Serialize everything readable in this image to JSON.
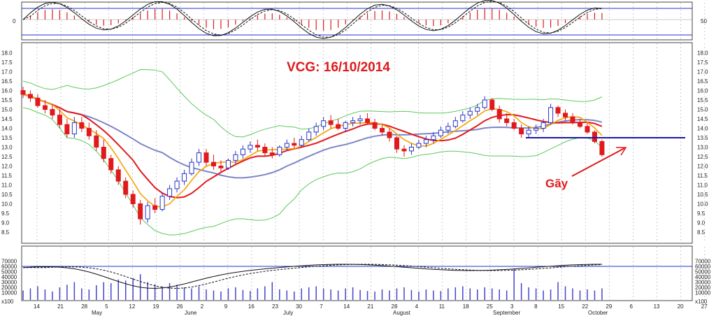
{
  "chart_data": {
    "type": "candlestick",
    "title": "VCG: 16/10/2014",
    "annotation": "Gãy",
    "colors": {
      "up_candle": "#2b35c8",
      "down_candle": "#e0191c",
      "ma_fast": "#f5a300",
      "ma_mid": "#e0191c",
      "ma_slow": "#7d86c8",
      "bollinger": "#5cc95c",
      "support_line": "#1a1aa8",
      "volume_bar": "#4444cc",
      "grid": "#b8b8b8"
    },
    "price_panel": {
      "ylim": [
        8.0,
        18.0
      ],
      "yticks": [
        "18.0",
        "17.5",
        "17.0",
        "16.5",
        "16.0",
        "15.5",
        "15.0",
        "14.5",
        "14.0",
        "13.5",
        "13.0",
        "12.5",
        "12.0",
        "11.5",
        "11.0",
        "10.5",
        "10.0",
        "9.5",
        "9.0",
        "8.5"
      ],
      "support_level": 13.5,
      "support_start_date": "Sep 15",
      "candles": [
        {
          "o": 16.0,
          "h": 16.2,
          "l": 15.6,
          "c": 15.8
        },
        {
          "o": 15.8,
          "h": 16.0,
          "l": 15.4,
          "c": 15.6
        },
        {
          "o": 15.6,
          "h": 15.8,
          "l": 15.1,
          "c": 15.2
        },
        {
          "o": 15.2,
          "h": 15.5,
          "l": 14.8,
          "c": 15.0
        },
        {
          "o": 15.0,
          "h": 15.3,
          "l": 14.5,
          "c": 14.7
        },
        {
          "o": 14.7,
          "h": 15.0,
          "l": 14.0,
          "c": 14.2
        },
        {
          "o": 14.2,
          "h": 14.5,
          "l": 13.5,
          "c": 13.7
        },
        {
          "o": 13.7,
          "h": 14.6,
          "l": 13.5,
          "c": 14.3
        },
        {
          "o": 14.3,
          "h": 14.6,
          "l": 13.8,
          "c": 14.0
        },
        {
          "o": 14.0,
          "h": 14.3,
          "l": 13.4,
          "c": 13.6
        },
        {
          "o": 13.6,
          "h": 13.9,
          "l": 12.8,
          "c": 13.0
        },
        {
          "o": 13.0,
          "h": 13.4,
          "l": 12.2,
          "c": 12.4
        },
        {
          "o": 12.4,
          "h": 12.6,
          "l": 11.6,
          "c": 11.8
        },
        {
          "o": 11.8,
          "h": 12.0,
          "l": 11.0,
          "c": 11.2
        },
        {
          "o": 11.2,
          "h": 11.4,
          "l": 10.3,
          "c": 10.5
        },
        {
          "o": 10.5,
          "h": 10.7,
          "l": 9.8,
          "c": 10.0
        },
        {
          "o": 10.0,
          "h": 10.2,
          "l": 8.9,
          "c": 9.2
        },
        {
          "o": 9.2,
          "h": 10.1,
          "l": 9.0,
          "c": 9.9
        },
        {
          "o": 9.9,
          "h": 10.3,
          "l": 9.5,
          "c": 9.7
        },
        {
          "o": 9.7,
          "h": 10.6,
          "l": 9.6,
          "c": 10.4
        },
        {
          "o": 10.4,
          "h": 11.0,
          "l": 10.2,
          "c": 10.8
        },
        {
          "o": 10.8,
          "h": 11.4,
          "l": 10.6,
          "c": 11.2
        },
        {
          "o": 11.2,
          "h": 11.8,
          "l": 11.0,
          "c": 11.6
        },
        {
          "o": 11.6,
          "h": 12.4,
          "l": 11.5,
          "c": 12.2
        },
        {
          "o": 12.2,
          "h": 12.9,
          "l": 12.0,
          "c": 12.7
        },
        {
          "o": 12.7,
          "h": 12.9,
          "l": 12.0,
          "c": 12.2
        },
        {
          "o": 12.2,
          "h": 12.6,
          "l": 11.8,
          "c": 12.0
        },
        {
          "o": 12.0,
          "h": 12.3,
          "l": 11.7,
          "c": 11.9
        },
        {
          "o": 11.9,
          "h": 12.4,
          "l": 11.8,
          "c": 12.3
        },
        {
          "o": 12.3,
          "h": 12.8,
          "l": 12.1,
          "c": 12.6
        },
        {
          "o": 12.6,
          "h": 13.1,
          "l": 12.4,
          "c": 12.9
        },
        {
          "o": 12.9,
          "h": 13.3,
          "l": 12.7,
          "c": 13.1
        },
        {
          "o": 13.1,
          "h": 13.4,
          "l": 12.8,
          "c": 13.0
        },
        {
          "o": 13.0,
          "h": 13.2,
          "l": 12.5,
          "c": 12.7
        },
        {
          "o": 12.7,
          "h": 13.0,
          "l": 12.4,
          "c": 12.6
        },
        {
          "o": 12.6,
          "h": 13.1,
          "l": 12.5,
          "c": 13.0
        },
        {
          "o": 13.0,
          "h": 13.4,
          "l": 12.8,
          "c": 13.2
        },
        {
          "o": 13.2,
          "h": 13.5,
          "l": 12.9,
          "c": 13.1
        },
        {
          "o": 13.1,
          "h": 13.6,
          "l": 13.0,
          "c": 13.4
        },
        {
          "o": 13.4,
          "h": 14.0,
          "l": 13.3,
          "c": 13.8
        },
        {
          "o": 13.8,
          "h": 14.3,
          "l": 13.6,
          "c": 14.1
        },
        {
          "o": 14.1,
          "h": 14.6,
          "l": 13.9,
          "c": 14.4
        },
        {
          "o": 14.4,
          "h": 14.7,
          "l": 14.0,
          "c": 14.2
        },
        {
          "o": 14.2,
          "h": 14.5,
          "l": 13.9,
          "c": 14.0
        },
        {
          "o": 14.0,
          "h": 14.4,
          "l": 13.8,
          "c": 14.3
        },
        {
          "o": 14.3,
          "h": 14.6,
          "l": 14.1,
          "c": 14.4
        },
        {
          "o": 14.4,
          "h": 14.7,
          "l": 14.2,
          "c": 14.5
        },
        {
          "o": 14.5,
          "h": 14.8,
          "l": 14.2,
          "c": 14.3
        },
        {
          "o": 14.3,
          "h": 14.5,
          "l": 13.9,
          "c": 14.0
        },
        {
          "o": 14.0,
          "h": 14.2,
          "l": 13.6,
          "c": 13.8
        },
        {
          "o": 13.8,
          "h": 14.0,
          "l": 13.3,
          "c": 13.5
        },
        {
          "o": 13.5,
          "h": 13.6,
          "l": 12.7,
          "c": 12.9
        },
        {
          "o": 12.9,
          "h": 13.1,
          "l": 12.5,
          "c": 12.8
        },
        {
          "o": 12.8,
          "h": 13.2,
          "l": 12.6,
          "c": 13.0
        },
        {
          "o": 13.0,
          "h": 13.4,
          "l": 12.9,
          "c": 13.2
        },
        {
          "o": 13.2,
          "h": 13.6,
          "l": 13.0,
          "c": 13.4
        },
        {
          "o": 13.4,
          "h": 13.8,
          "l": 13.2,
          "c": 13.6
        },
        {
          "o": 13.6,
          "h": 14.1,
          "l": 13.5,
          "c": 13.9
        },
        {
          "o": 13.9,
          "h": 14.3,
          "l": 13.7,
          "c": 14.1
        },
        {
          "o": 14.1,
          "h": 14.6,
          "l": 14.0,
          "c": 14.4
        },
        {
          "o": 14.4,
          "h": 14.9,
          "l": 14.3,
          "c": 14.7
        },
        {
          "o": 14.7,
          "h": 15.1,
          "l": 14.5,
          "c": 14.9
        },
        {
          "o": 14.9,
          "h": 15.3,
          "l": 14.7,
          "c": 15.1
        },
        {
          "o": 15.1,
          "h": 15.7,
          "l": 15.0,
          "c": 15.5
        },
        {
          "o": 15.5,
          "h": 15.6,
          "l": 14.9,
          "c": 15.0
        },
        {
          "o": 15.0,
          "h": 15.2,
          "l": 14.3,
          "c": 14.5
        },
        {
          "o": 14.5,
          "h": 14.8,
          "l": 14.1,
          "c": 14.3
        },
        {
          "o": 14.3,
          "h": 14.5,
          "l": 13.9,
          "c": 14.0
        },
        {
          "o": 14.0,
          "h": 14.2,
          "l": 13.5,
          "c": 13.7
        },
        {
          "o": 13.7,
          "h": 14.1,
          "l": 13.5,
          "c": 13.9
        },
        {
          "o": 13.9,
          "h": 14.2,
          "l": 13.7,
          "c": 14.0
        },
        {
          "o": 14.0,
          "h": 14.5,
          "l": 13.8,
          "c": 14.3
        },
        {
          "o": 14.3,
          "h": 15.3,
          "l": 14.2,
          "c": 15.1
        },
        {
          "o": 15.1,
          "h": 15.2,
          "l": 14.6,
          "c": 14.8
        },
        {
          "o": 14.8,
          "h": 15.0,
          "l": 14.4,
          "c": 14.6
        },
        {
          "o": 14.6,
          "h": 14.8,
          "l": 14.2,
          "c": 14.3
        },
        {
          "o": 14.3,
          "h": 14.5,
          "l": 14.0,
          "c": 14.1
        },
        {
          "o": 14.1,
          "h": 14.3,
          "l": 13.7,
          "c": 13.8
        },
        {
          "o": 13.8,
          "h": 13.9,
          "l": 13.2,
          "c": 13.3
        },
        {
          "o": 13.3,
          "h": 13.4,
          "l": 12.5,
          "c": 12.6
        }
      ]
    },
    "oscillator_panel": {
      "yticks_left": [
        "0"
      ],
      "yticks_right": [
        "50"
      ]
    },
    "volume_panel": {
      "yticks": [
        "70000",
        "60000",
        "50000",
        "40000",
        "30000",
        "20000",
        "10000"
      ],
      "level_line": 60000,
      "unit_label": "x100",
      "volume": [
        14,
        18,
        22,
        16,
        12,
        20,
        25,
        30,
        18,
        16,
        24,
        30,
        28,
        35,
        33,
        38,
        45,
        30,
        26,
        22,
        28,
        25,
        20,
        18,
        22,
        16,
        14,
        12,
        18,
        20,
        15,
        13,
        18,
        22,
        30,
        16,
        14,
        12,
        18,
        20,
        22,
        18,
        16,
        14,
        18,
        20,
        15,
        13,
        12,
        16,
        14,
        18,
        20,
        15,
        12,
        16,
        14,
        13,
        18,
        20,
        22,
        18,
        16,
        20,
        18,
        16,
        14,
        55,
        28,
        20,
        18,
        14,
        16,
        30,
        22,
        18,
        14,
        16,
        14,
        18
      ]
    },
    "x_axis": {
      "day_labels": [
        "14",
        "21",
        "28",
        "5",
        "12",
        "19",
        "26",
        "2",
        "9",
        "16",
        "23",
        "30",
        "7",
        "14",
        "21",
        "28",
        "4",
        "11",
        "18",
        "25",
        "3",
        "8",
        "15",
        "22",
        "29",
        "6",
        "13",
        "20",
        "27"
      ],
      "month_labels": [
        "May",
        "June",
        "July",
        "August",
        "September",
        "October"
      ]
    }
  }
}
